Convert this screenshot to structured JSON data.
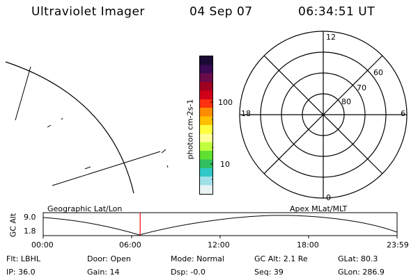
{
  "header": {
    "title": "Ultraviolet Imager",
    "date": "04 Sep 07",
    "time": "06:34:51 UT"
  },
  "colorbar": {
    "unit_label": "photon cm-2s-1",
    "tick_100": "100",
    "tick_10": "10",
    "colors": [
      "#1a0a35",
      "#3a0a55",
      "#6a0a4a",
      "#a00020",
      "#d0001a",
      "#ff3010",
      "#ff8c00",
      "#ffc000",
      "#ffff40",
      "#ffff99",
      "#c0ff40",
      "#60e030",
      "#30c060",
      "#30c8c8",
      "#a0e0e8",
      "#e8f4f4"
    ]
  },
  "polar_plot": {
    "mlt_12": "12",
    "mlt_18": "18",
    "mlt_6": "6",
    "mlt_0": "0",
    "lat_60": "60",
    "lat_70": "70",
    "lat_80": "80"
  },
  "timeline": {
    "left_label": "Geographic Lat/Lon",
    "right_label": "Apex MLat/MLT",
    "axis_title": "GC Alt",
    "y_top": "9.0",
    "y_bottom": "1.8",
    "x_ticks": [
      "00:00",
      "06:00",
      "12:00",
      "18:00",
      "23:59"
    ],
    "current_time_marker_fraction": 0.274,
    "marker_color": "#ff0000"
  },
  "info": {
    "flt": "Flt: LBHL",
    "ip": "IP: 36.0",
    "door": "Door: Open",
    "gain": "Gain: 14",
    "mode": "Mode: Normal",
    "dsp": "Dsp:    -0.0",
    "gcalt": "GC Alt: 2.1 Re",
    "seq": "Seq: 39",
    "glat": "GLat:  80.3",
    "glon": "GLon: 286.9"
  }
}
